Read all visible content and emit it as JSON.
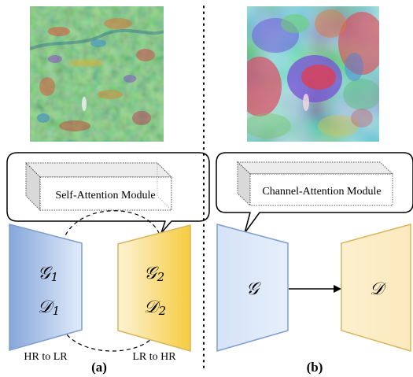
{
  "panel_a": {
    "caption": "(a)",
    "module_label": "Self-Attention Module",
    "generator_left": {
      "symbol": "𝒢",
      "subscript": "1"
    },
    "discriminator_left": {
      "symbol": "𝒟",
      "subscript": "1"
    },
    "generator_right": {
      "symbol": "𝒢",
      "subscript": "2"
    },
    "discriminator_right": {
      "symbol": "𝒟",
      "subscript": "2"
    },
    "left_label": "HR to LR",
    "right_label": "LR to HR"
  },
  "panel_b": {
    "caption": "(b)",
    "module_label": "Channel-Attention Module",
    "generator": {
      "symbol": "𝒢"
    },
    "discriminator": {
      "symbol": "𝒟"
    }
  },
  "colors": {
    "blue_light": "#dde9fb",
    "blue_dark": "#7f9fd6",
    "blue_stroke": "#7e9fd0",
    "yellow_light": "#fdf3d6",
    "yellow_dark": "#f7cf48",
    "yellow_stroke": "#d9b65b"
  }
}
